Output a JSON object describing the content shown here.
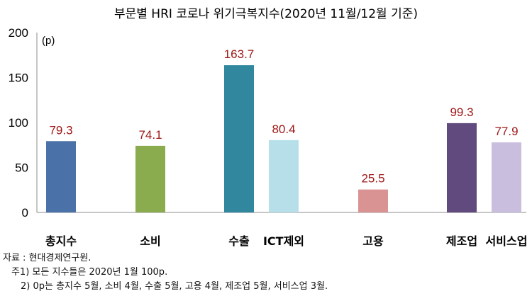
{
  "chart_data": {
    "type": "bar",
    "title": "부문별 HRI 코로나 위기극복지수(2020년 11월/12월 기준)",
    "unit_label": "(p)",
    "categories": [
      "총지수",
      "소비",
      "수출",
      "ICT제외",
      "고용",
      "제조업",
      "서비스업"
    ],
    "values": [
      79.3,
      74.1,
      163.7,
      80.4,
      25.5,
      99.3,
      77.9
    ],
    "value_labels": [
      "79.3",
      "74.1",
      "163.7",
      "80.4",
      "25.5",
      "99.3",
      "77.9"
    ],
    "colors": [
      "#4a72a8",
      "#8aab4e",
      "#31879e",
      "#b7dfe9",
      "#d99393",
      "#614a7e",
      "#c9bedd"
    ],
    "ylim": [
      0,
      200
    ],
    "yticks": [
      "0",
      "50",
      "100",
      "150",
      "200"
    ],
    "grid": false
  },
  "notes": [
    "자료 : 현대경제연구원.",
    "주1) 모든 지수들은 2020년 1월 100p.",
    "2) 0p는 총지수 5월, 소비 4월, 수출 5월, 고용 4월, 제조업 5월, 서비스업 3월."
  ]
}
